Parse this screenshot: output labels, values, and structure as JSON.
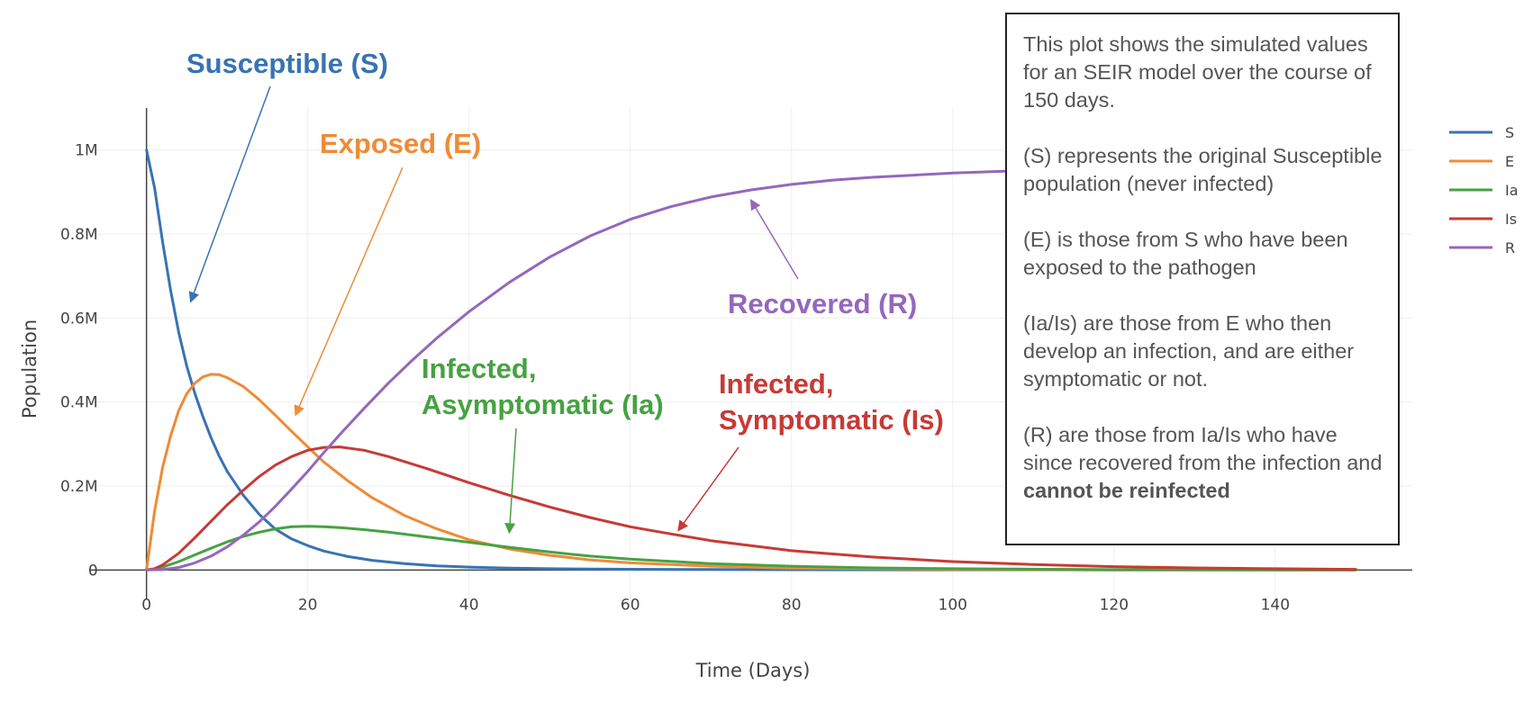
{
  "chart_data": {
    "type": "line",
    "title": "",
    "xlabel": "Time (Days)",
    "ylabel": "Population",
    "xlim": [
      -7,
      157
    ],
    "ylim": [
      -70000,
      1100000
    ],
    "x_ticks": [
      0,
      20,
      40,
      60,
      80,
      100,
      120,
      140
    ],
    "x_tick_labels": [
      "0",
      "20",
      "40",
      "60",
      "80",
      "100",
      "120",
      "140"
    ],
    "y_ticks": [
      0,
      200000,
      400000,
      600000,
      800000,
      1000000
    ],
    "y_tick_labels": [
      "0",
      "0.2M",
      "0.4M",
      "0.6M",
      "0.8M",
      "1M"
    ],
    "grid": true,
    "legend_position": "top-right",
    "series": [
      {
        "name": "S",
        "color": "#3873b2",
        "x": [
          0,
          1,
          2,
          3,
          4,
          5,
          6,
          7,
          8,
          9,
          10,
          12,
          14,
          16,
          18,
          20,
          22,
          25,
          28,
          32,
          36,
          40,
          45,
          50,
          60,
          70,
          80,
          100,
          120,
          150
        ],
        "y": [
          1000000,
          910000,
          780000,
          665000,
          565000,
          485000,
          420000,
          365000,
          315000,
          272000,
          235000,
          178000,
          132000,
          97000,
          74000,
          58000,
          45000,
          32000,
          23000,
          15000,
          10000,
          7000,
          4500,
          3000,
          1800,
          1200,
          800,
          400,
          200,
          100
        ]
      },
      {
        "name": "E",
        "color": "#ef8b36",
        "x": [
          0,
          1,
          2,
          3,
          4,
          5,
          6,
          7,
          8,
          9,
          10,
          12,
          14,
          16,
          18,
          20,
          22,
          25,
          28,
          32,
          36,
          40,
          45,
          50,
          55,
          60,
          70,
          80,
          100,
          120,
          150
        ],
        "y": [
          0,
          140000,
          245000,
          320000,
          380000,
          420000,
          445000,
          460000,
          466000,
          465000,
          458000,
          437000,
          405000,
          368000,
          330000,
          293000,
          257000,
          212000,
          172000,
          130000,
          98000,
          72000,
          50000,
          35000,
          24000,
          17000,
          9000,
          4500,
          1500,
          500,
          100
        ]
      },
      {
        "name": "Ia",
        "color": "#47a242",
        "x": [
          0,
          1,
          2,
          4,
          6,
          8,
          10,
          12,
          14,
          16,
          18,
          20,
          22,
          24,
          27,
          30,
          35,
          40,
          45,
          50,
          55,
          60,
          70,
          80,
          90,
          100,
          120,
          150
        ],
        "y": [
          0,
          2000,
          7000,
          20000,
          36000,
          52000,
          67000,
          80000,
          90000,
          98000,
          103000,
          104000,
          103000,
          101000,
          96000,
          90000,
          78000,
          66000,
          54000,
          43000,
          33000,
          26000,
          15000,
          9000,
          5000,
          3000,
          1000,
          200
        ]
      },
      {
        "name": "Is",
        "color": "#c73a35",
        "x": [
          0,
          1,
          2,
          4,
          6,
          8,
          10,
          12,
          14,
          16,
          18,
          20,
          22,
          24,
          27,
          30,
          35,
          40,
          45,
          50,
          55,
          60,
          65,
          70,
          80,
          90,
          100,
          110,
          120,
          130,
          140,
          150
        ],
        "y": [
          0,
          3000,
          12000,
          40000,
          77000,
          116000,
          155000,
          190000,
          223000,
          250000,
          270000,
          285000,
          292000,
          293000,
          285000,
          270000,
          240000,
          208000,
          178000,
          150000,
          125000,
          103000,
          86000,
          70000,
          46000,
          31000,
          20000,
          13000,
          8000,
          5000,
          3000,
          1500
        ]
      },
      {
        "name": "R",
        "color": "#9467bd",
        "x": [
          0,
          2,
          4,
          6,
          8,
          10,
          12,
          14,
          16,
          18,
          20,
          22,
          24,
          27,
          30,
          33,
          36,
          40,
          45,
          50,
          55,
          60,
          65,
          70,
          75,
          80,
          85,
          90,
          100,
          110,
          120,
          130,
          140,
          150
        ],
        "y": [
          0,
          1000,
          6000,
          17000,
          33000,
          55000,
          83000,
          115000,
          152000,
          193000,
          235000,
          280000,
          323000,
          385000,
          445000,
          500000,
          552000,
          615000,
          685000,
          745000,
          795000,
          835000,
          865000,
          888000,
          905000,
          918000,
          928000,
          935000,
          945000,
          952000,
          956000,
          959000,
          961000,
          963000
        ]
      }
    ],
    "annotations": [
      {
        "text": "Susceptible (S)",
        "series": "S",
        "arrow_to": [
          5.5,
          640000
        ]
      },
      {
        "text": "Exposed (E)",
        "series": "E",
        "arrow_to": [
          18.5,
          370000
        ]
      },
      {
        "text": "Recovered (R)",
        "series": "R",
        "arrow_to": [
          75,
          880000
        ]
      },
      {
        "text": "Infected,",
        "text2": "Asymptomatic (Ia)",
        "series": "Ia",
        "arrow_to": [
          45,
          90000
        ]
      },
      {
        "text": "Infected,",
        "text2": "Symptomatic (Is)",
        "series": "Is",
        "arrow_to": [
          66,
          95000
        ]
      }
    ]
  },
  "info_box": {
    "p1": "This plot shows the simulated values for an SEIR model over the course of 150 days.",
    "p2": "(S) represents the original Susceptible population (never infected)",
    "p3": "(E) is those from S who have been exposed to the pathogen",
    "p4": "(Ia/Is) are those from E who then develop an infection, and are either symptomatic or not.",
    "p5_pre": "(R) are those from Ia/Is who have since recovered from the infection and ",
    "p5_bold": "cannot be reinfected"
  }
}
